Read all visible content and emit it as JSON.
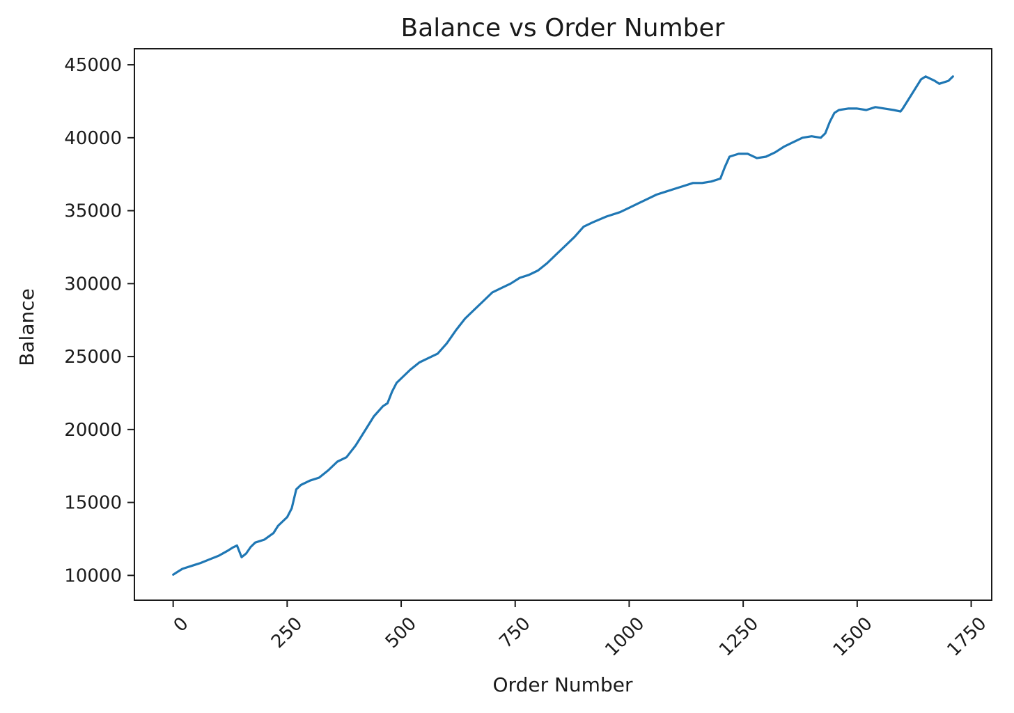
{
  "chart_data": {
    "type": "line",
    "title": "Balance vs Order Number",
    "xlabel": "Order Number",
    "ylabel": "Balance",
    "xlim": [
      -85,
      1795
    ],
    "ylim": [
      8300,
      46100
    ],
    "x_ticks": [
      0,
      250,
      500,
      750,
      1000,
      1250,
      1500,
      1750
    ],
    "x_tick_labels": [
      "0",
      "250",
      "500",
      "750",
      "1000",
      "1250",
      "1500",
      "1750"
    ],
    "x_tick_rotation": 45,
    "y_ticks": [
      10000,
      15000,
      20000,
      25000,
      30000,
      35000,
      40000,
      45000
    ],
    "y_tick_labels": [
      "10000",
      "15000",
      "20000",
      "25000",
      "30000",
      "35000",
      "40000",
      "45000"
    ],
    "grid": false,
    "series": [
      {
        "color": "#1f77b4",
        "x": [
          0,
          10,
          20,
          30,
          40,
          50,
          60,
          80,
          100,
          120,
          130,
          140,
          150,
          160,
          170,
          180,
          200,
          220,
          230,
          250,
          260,
          270,
          280,
          300,
          320,
          340,
          360,
          380,
          400,
          420,
          440,
          460,
          470,
          480,
          490,
          500,
          520,
          540,
          560,
          580,
          600,
          620,
          640,
          660,
          680,
          700,
          720,
          740,
          760,
          780,
          800,
          820,
          840,
          860,
          880,
          900,
          920,
          950,
          980,
          1000,
          1020,
          1040,
          1060,
          1080,
          1100,
          1120,
          1140,
          1160,
          1180,
          1200,
          1210,
          1220,
          1240,
          1260,
          1280,
          1300,
          1320,
          1340,
          1360,
          1380,
          1400,
          1420,
          1430,
          1440,
          1450,
          1460,
          1480,
          1500,
          1520,
          1540,
          1560,
          1580,
          1595,
          1600,
          1620,
          1640,
          1650,
          1670,
          1680,
          1700,
          1710
        ],
        "y": [
          10050,
          10250,
          10450,
          10550,
          10650,
          10750,
          10850,
          11100,
          11350,
          11700,
          11900,
          12050,
          11250,
          11500,
          11950,
          12250,
          12450,
          12900,
          13400,
          14000,
          14600,
          15900,
          16200,
          16500,
          16700,
          17200,
          17800,
          18100,
          18900,
          19900,
          20900,
          21600,
          21800,
          22600,
          23200,
          23500,
          24100,
          24600,
          24900,
          25200,
          25900,
          26800,
          27600,
          28200,
          28800,
          29400,
          29700,
          30000,
          30400,
          30600,
          30900,
          31400,
          32000,
          32600,
          33200,
          33900,
          34200,
          34600,
          34900,
          35200,
          35500,
          35800,
          36100,
          36300,
          36500,
          36700,
          36900,
          36900,
          37000,
          37200,
          38000,
          38700,
          38900,
          38900,
          38600,
          38700,
          39000,
          39400,
          39700,
          40000,
          40100,
          40000,
          40300,
          41100,
          41700,
          41900,
          42000,
          42000,
          41900,
          42100,
          42000,
          41900,
          41800,
          42000,
          43000,
          44000,
          44200,
          43900,
          43700,
          43900,
          44200
        ]
      }
    ]
  }
}
